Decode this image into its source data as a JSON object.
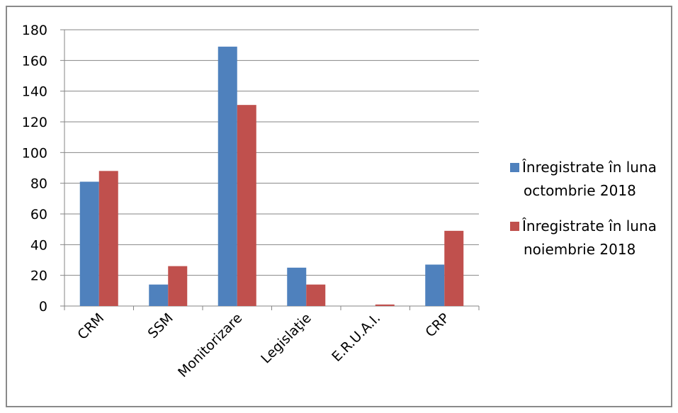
{
  "chart_data": {
    "type": "bar",
    "categories": [
      "CRM",
      "SSM",
      "Monitorizare",
      "Legislaţie",
      "E.R.U.A.I.",
      "CRP"
    ],
    "series": [
      {
        "name": "Înregistrate în luna octombrie 2018",
        "legend_lines": [
          "Înregistrate în luna",
          "octombrie 2018"
        ],
        "color": "#4f81bd",
        "values": [
          81,
          14,
          169,
          25,
          0,
          27
        ]
      },
      {
        "name": "Înregistrate în luna noiembrie 2018",
        "legend_lines": [
          "Înregistrate în luna",
          "noiembrie 2018"
        ],
        "color": "#c0504d",
        "values": [
          88,
          26,
          131,
          14,
          1,
          49
        ]
      }
    ],
    "ylim": [
      0,
      180
    ],
    "yticks": [
      0,
      20,
      40,
      60,
      80,
      100,
      120,
      140,
      160,
      180
    ],
    "grid": true,
    "legend_position": "right"
  }
}
